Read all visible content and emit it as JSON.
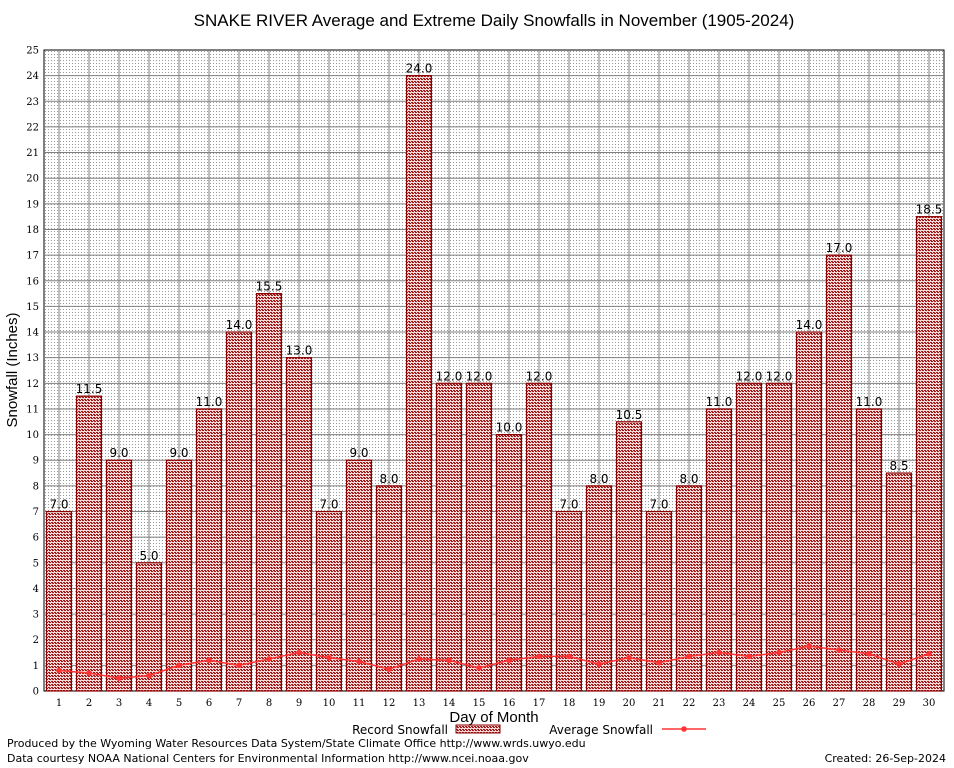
{
  "chart_data": {
    "type": "bar",
    "title": "SNAKE RIVER Average and Extreme Daily Snowfalls in November (1905-2024)",
    "xlabel": "Day of Month",
    "ylabel": "Snowfall (Inches)",
    "ylim": [
      0,
      25
    ],
    "yticks": [
      "0",
      "1",
      "2",
      "3",
      "4",
      "5",
      "6",
      "7",
      "8",
      "9",
      "10",
      "11",
      "12",
      "13",
      "14",
      "15",
      "16",
      "17",
      "18",
      "19",
      "20",
      "21",
      "22",
      "23",
      "24",
      "25"
    ],
    "categories": [
      "1",
      "2",
      "3",
      "4",
      "5",
      "6",
      "7",
      "8",
      "9",
      "10",
      "11",
      "12",
      "13",
      "14",
      "15",
      "16",
      "17",
      "18",
      "19",
      "20",
      "21",
      "22",
      "23",
      "24",
      "25",
      "26",
      "27",
      "28",
      "29",
      "30"
    ],
    "series": [
      {
        "name": "Record Snowfall",
        "values": [
          7.0,
          11.5,
          9.0,
          5.0,
          9.0,
          11.0,
          14.0,
          15.5,
          13.0,
          7.0,
          9.0,
          8.0,
          24.0,
          12.0,
          12.0,
          10.0,
          12.0,
          7.0,
          8.0,
          10.5,
          7.0,
          8.0,
          11.0,
          12.0,
          12.0,
          14.0,
          17.0,
          11.0,
          8.5,
          18.5
        ],
        "labels": [
          "7.0",
          "11.5",
          "9.0",
          "5.0",
          "9.0",
          "11.0",
          "14.0",
          "15.5",
          "13.0",
          "7.0",
          "9.0",
          "8.0",
          "24.0",
          "12.0",
          "12.0",
          "10.0",
          "12.0",
          "7.0",
          "8.0",
          "10.5",
          "7.0",
          "8.0",
          "11.0",
          "12.0",
          "12.0",
          "14.0",
          "17.0",
          "11.0",
          "8.5",
          "18.5"
        ]
      },
      {
        "name": "Average Snowfall",
        "values": [
          0.8,
          0.7,
          0.5,
          0.6,
          1.0,
          1.2,
          1.0,
          1.25,
          1.5,
          1.3,
          1.15,
          0.85,
          1.25,
          1.2,
          0.9,
          1.2,
          1.35,
          1.35,
          1.05,
          1.3,
          1.1,
          1.35,
          1.5,
          1.35,
          1.5,
          1.75,
          1.6,
          1.45,
          1.05,
          1.45
        ]
      }
    ],
    "grid": true,
    "legend": "bottom",
    "colors": {
      "bar_fill": "#a52828",
      "bar_edge": "#8b0000",
      "line": "#ff3333"
    }
  },
  "credits": {
    "left1": "Produced by the Wyoming Water Resources Data System/State Climate Office http://www.wrds.uwyo.edu",
    "left2": "Data courtesy NOAA National Centers for Environmental Information http://www.ncei.noaa.gov",
    "right": "Created:  26-Sep-2024"
  }
}
